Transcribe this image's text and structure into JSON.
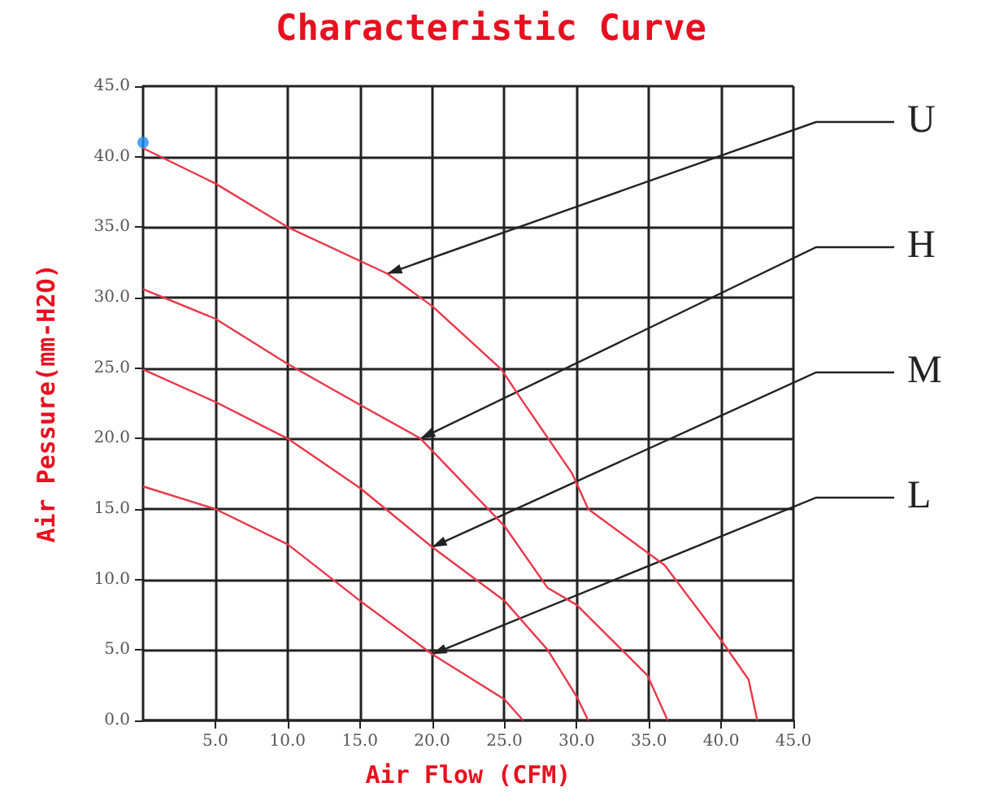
{
  "chart_data": {
    "type": "line",
    "title": "Characteristic Curve",
    "xlabel": "Air Flow (CFM)",
    "ylabel": "Air Pessure(mm-H2O)",
    "xlim": [
      0,
      45
    ],
    "ylim": [
      0,
      45
    ],
    "xticks": [
      {
        "value": 5,
        "label": "5.0"
      },
      {
        "value": 10,
        "label": "10.0"
      },
      {
        "value": 15,
        "label": "15.0"
      },
      {
        "value": 20,
        "label": "20.0"
      },
      {
        "value": 25,
        "label": "25.0"
      },
      {
        "value": 30,
        "label": "30.0"
      },
      {
        "value": 35,
        "label": "35.0"
      },
      {
        "value": 40,
        "label": "40.0"
      },
      {
        "value": 45,
        "label": "45.0"
      }
    ],
    "yticks": [
      {
        "value": 0,
        "label": "0.0"
      },
      {
        "value": 5,
        "label": "5.0"
      },
      {
        "value": 10,
        "label": "10.0"
      },
      {
        "value": 15,
        "label": "15.0"
      },
      {
        "value": 20,
        "label": "20.0"
      },
      {
        "value": 25,
        "label": "25.0"
      },
      {
        "value": 30,
        "label": "30.0"
      },
      {
        "value": 35,
        "label": "35.0"
      },
      {
        "value": 40,
        "label": "40.0"
      },
      {
        "value": 45,
        "label": "45.0"
      }
    ],
    "grid": true,
    "marker": "none",
    "line_style": "solid",
    "series": [
      {
        "color": "#e8384a",
        "x": [
          0,
          5,
          10,
          16.9,
          20,
          24.8,
          26.1,
          29.7,
          30.8,
          36.1,
          40,
          41.9,
          42.5
        ],
        "values": [
          40.6,
          38.1,
          35,
          31.7,
          29.4,
          24.9,
          22.9,
          17.5,
          15,
          11,
          5.7,
          2.9,
          0
        ]
      },
      {
        "color": "#e8384a",
        "x": [
          0,
          5,
          10,
          15,
          19.2,
          25,
          28,
          30,
          34.9,
          36.3
        ],
        "values": [
          30.6,
          28.5,
          25.3,
          22.4,
          20,
          13.8,
          9.4,
          8.2,
          3.2,
          0
        ]
      },
      {
        "color": "#e8384a",
        "x": [
          0,
          5,
          10,
          15,
          20,
          25,
          28,
          30,
          30.8
        ],
        "values": [
          24.9,
          22.6,
          20,
          16.5,
          12.3,
          8.5,
          5,
          1.7,
          0
        ]
      },
      {
        "color": "#e8384a",
        "x": [
          0,
          5,
          10,
          15,
          20,
          25,
          26.3
        ],
        "values": [
          16.6,
          15,
          12.5,
          8.5,
          4.7,
          1.5,
          0
        ]
      },
      {
        "type": "scatter",
        "color": "#1e90ff",
        "marker": "circle",
        "x": [
          0
        ],
        "values": [
          41
        ]
      }
    ],
    "annotations": [
      {
        "text": "U",
        "x": 16.9,
        "y": 31.7
      },
      {
        "text": "H",
        "x": 19.2,
        "y": 20
      },
      {
        "text": "M",
        "x": 20,
        "y": 12.3
      },
      {
        "text": "L",
        "x": 20,
        "y": 4.7
      }
    ]
  }
}
